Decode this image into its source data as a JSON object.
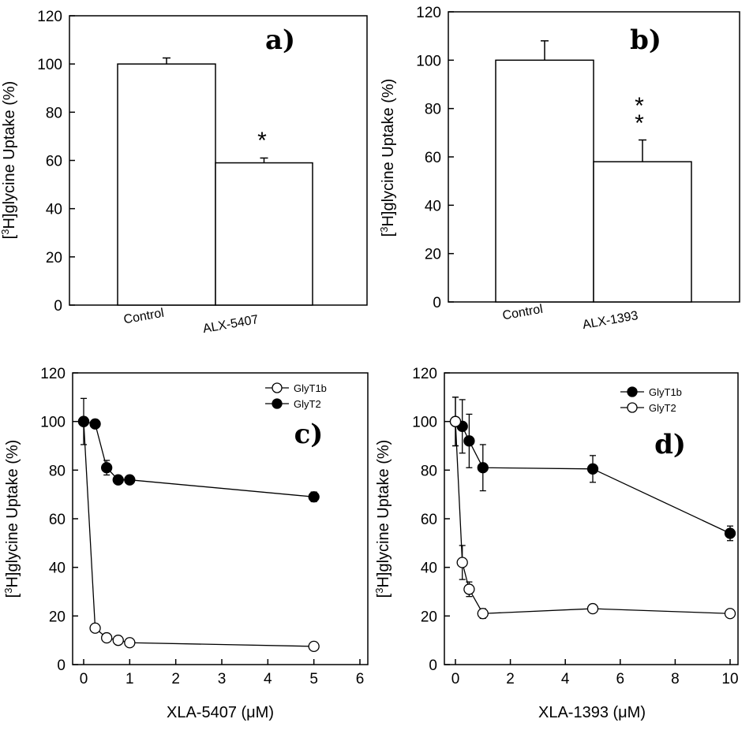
{
  "chart_data": [
    {
      "panel": "a",
      "type": "bar",
      "label": "a)",
      "categories": [
        "Control",
        "ALX-5407"
      ],
      "values": [
        100,
        59
      ],
      "errors": [
        2.5,
        2
      ],
      "significance": [
        "",
        "*"
      ],
      "ylabel_prefix": "[",
      "ylabel_sup": "3",
      "ylabel_rest": "H]glycine Uptake (%)",
      "ylim": [
        0,
        120
      ],
      "yticks": [
        "0",
        "20",
        "40",
        "60",
        "80",
        "100",
        "120"
      ]
    },
    {
      "panel": "b",
      "type": "bar",
      "label": "b)",
      "categories": [
        "Control",
        "ALX-1393"
      ],
      "values": [
        100,
        58
      ],
      "errors": [
        8,
        9
      ],
      "significance": [
        "",
        "**"
      ],
      "ylabel_prefix": "[",
      "ylabel_sup": "3",
      "ylabel_rest": "H]glycine Uptake (%)",
      "ylim": [
        0,
        120
      ],
      "yticks": [
        "0",
        "20",
        "40",
        "60",
        "80",
        "100",
        "120"
      ]
    },
    {
      "panel": "c",
      "type": "line",
      "label": "c)",
      "xlabel": "XLA-5407 (μM)",
      "ylabel_prefix": "[",
      "ylabel_sup": "3",
      "ylabel_rest": "H]glycine Uptake (%)",
      "xlim": [
        0,
        6
      ],
      "ylim": [
        0,
        120
      ],
      "xticks": [
        "0",
        "1",
        "2",
        "3",
        "4",
        "5",
        "6"
      ],
      "yticks": [
        "0",
        "20",
        "40",
        "60",
        "80",
        "100",
        "120"
      ],
      "series": [
        {
          "name": "GlyT1b",
          "marker": "open",
          "x": [
            0,
            0.25,
            0.5,
            0.75,
            1,
            5
          ],
          "y": [
            100,
            15,
            11,
            10,
            9,
            7.5
          ],
          "err": [
            9.5,
            1,
            1,
            1,
            1,
            1
          ]
        },
        {
          "name": "GlyT2",
          "marker": "filled",
          "x": [
            0,
            0.25,
            0.5,
            0.75,
            1,
            5
          ],
          "y": [
            100,
            99,
            81,
            76,
            76,
            69
          ],
          "err": [
            0,
            1,
            3,
            1,
            1,
            2
          ]
        }
      ],
      "legend": [
        "GlyT1b",
        "GlyT2"
      ]
    },
    {
      "panel": "d",
      "type": "line",
      "label": "d)",
      "xlabel": "XLA-1393 (μM)",
      "ylabel_prefix": "[",
      "ylabel_sup": "3",
      "ylabel_rest": "H]glycine Uptake (%)",
      "xlim": [
        0,
        10
      ],
      "ylim": [
        0,
        120
      ],
      "xticks": [
        "0",
        "2",
        "4",
        "6",
        "8",
        "10"
      ],
      "yticks": [
        "0",
        "20",
        "40",
        "60",
        "80",
        "100",
        "120"
      ],
      "series": [
        {
          "name": "GlyT1b",
          "marker": "filled",
          "x": [
            0,
            0.25,
            0.5,
            1,
            5,
            10
          ],
          "y": [
            100,
            98,
            92,
            81,
            80.5,
            54
          ],
          "err": [
            10,
            11,
            11,
            9.5,
            5.5,
            3
          ]
        },
        {
          "name": "GlyT2",
          "marker": "open",
          "x": [
            0,
            0.25,
            0.5,
            1,
            5,
            10
          ],
          "y": [
            100,
            42,
            31,
            21,
            23,
            21
          ],
          "err": [
            10,
            7,
            3,
            2,
            1,
            1
          ]
        }
      ],
      "legend": [
        "GlyT1b",
        "GlyT2"
      ]
    }
  ]
}
